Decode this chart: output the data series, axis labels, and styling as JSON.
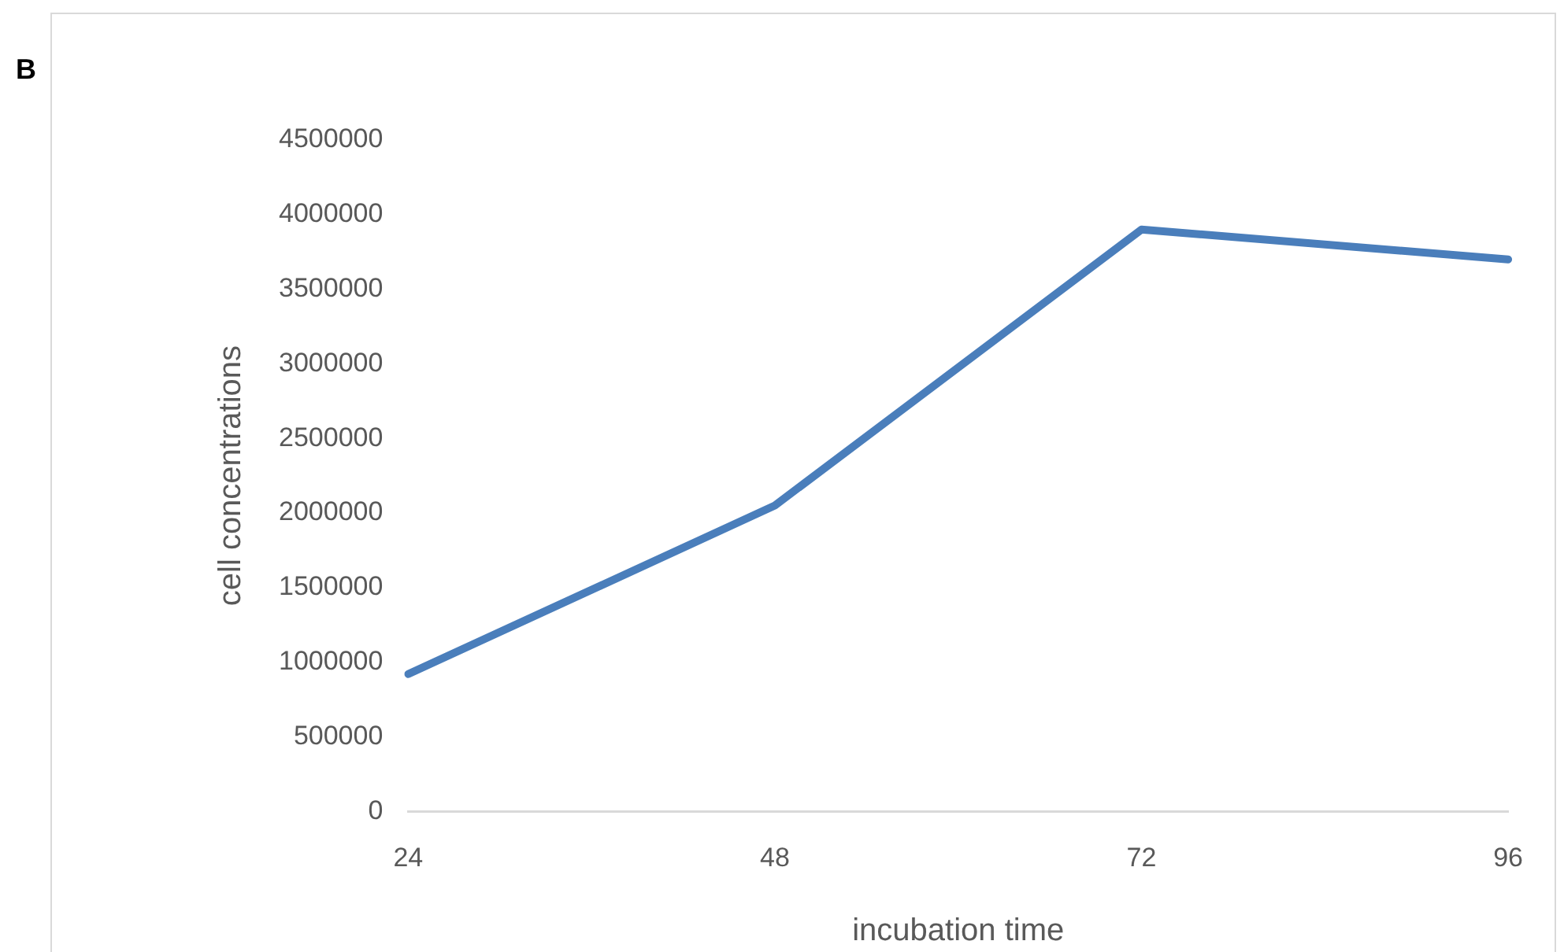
{
  "chart_data": {
    "type": "line",
    "xlabel": "incubation time",
    "ylabel": "cell concentrations",
    "annotations": [
      "B"
    ],
    "categories": [
      "24",
      "48",
      "72",
      "96"
    ],
    "series": [
      {
        "color": "#4a7ebb",
        "values": [
          920000,
          2050000,
          3900000,
          3700000
        ]
      }
    ],
    "ylim": [
      0,
      4500000
    ],
    "yticks": [
      0,
      500000,
      1000000,
      1500000,
      2000000,
      2500000,
      3000000,
      3500000,
      4000000,
      4500000
    ],
    "grid": false,
    "legend": false,
    "marker": "none",
    "line_style": "solid"
  }
}
